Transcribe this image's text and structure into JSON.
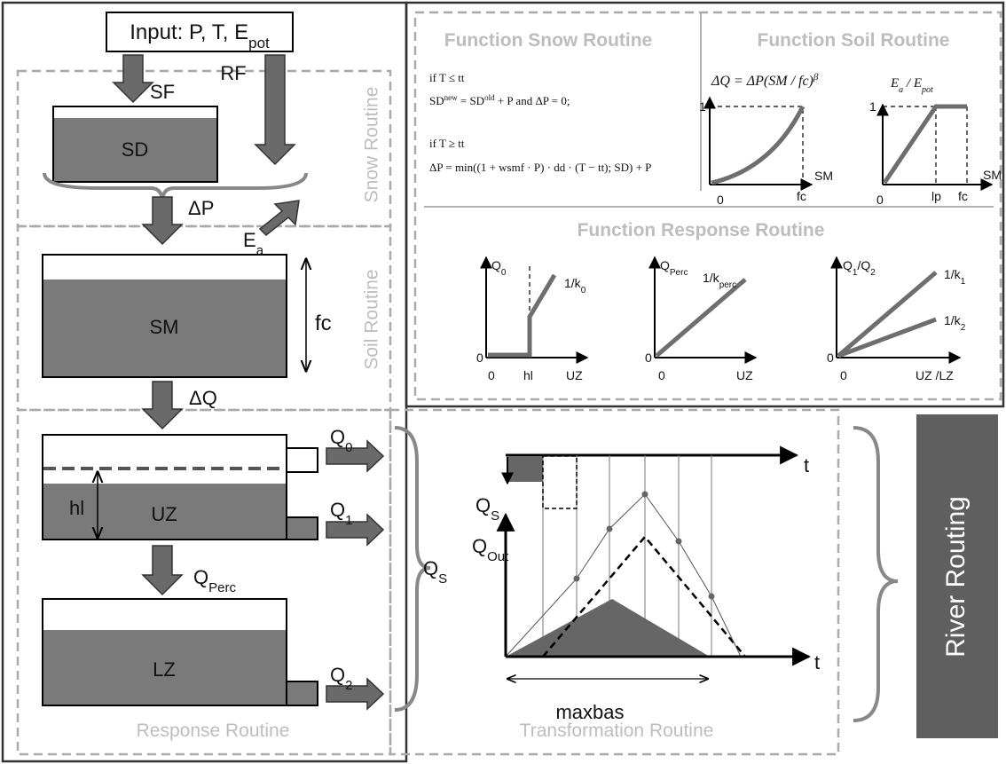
{
  "input": {
    "text": "Input: P, T, E",
    "sub": "pot"
  },
  "snow": {
    "label": "Snow Routine",
    "sf": "SF",
    "rf": "RF",
    "sd": "SD",
    "dp": "ΔP"
  },
  "soil": {
    "label": "Soil Routine",
    "ea": {
      "text": "E",
      "sub": "a"
    },
    "sm": "SM",
    "fc": "fc",
    "dq": "ΔQ"
  },
  "response": {
    "label": "Response Routine",
    "uz": "UZ",
    "hl": "hl",
    "lz": "LZ",
    "q0": {
      "text": "Q",
      "sub": "0"
    },
    "q1": {
      "text": "Q",
      "sub": "1"
    },
    "q2": {
      "text": "Q",
      "sub": "2"
    },
    "qperc": {
      "text": "Q",
      "sub": "Perc"
    },
    "qs": {
      "text": "Q",
      "sub": "S"
    }
  },
  "transformation": {
    "label": "Transformation Routine",
    "t_top": "t",
    "qs": {
      "text": "Q",
      "sub": "S"
    },
    "qout": {
      "text": "Q",
      "sub": "Out"
    },
    "t_bottom": "t",
    "maxbas": "maxbas"
  },
  "river": "River Routing",
  "functions": {
    "snow": {
      "title": "Function Snow Routine",
      "if1": "if    T ≤ tt",
      "line2": {
        "pre": "SD",
        "sup1": "new",
        "mid": " = SD",
        "sup2": "old",
        "post": " + P    and    ΔP = 0;"
      },
      "if2": "if    T ≥ tt",
      "line4": "ΔP = min((1 + wsmf · P) · dd · (T − tt); SD) + P"
    },
    "soil": {
      "title": "Function Soil Routine",
      "eq": {
        "pre": "ΔQ = ΔP(SM / fc)",
        "sup": "β"
      },
      "plot1": {
        "one": "1",
        "x": "SM",
        "zero": "0",
        "fc": "fc"
      },
      "plot2": {
        "y": {
          "e1": "E",
          "s1": "a",
          "mid": " / E",
          "s2": "pot"
        },
        "one": "1",
        "x": "SM",
        "zero": "0",
        "lp": "lp",
        "fc": "fc"
      }
    },
    "response": {
      "title": "Function Response Routine",
      "plot1": {
        "y": {
          "text": "Q",
          "sub": "0"
        },
        "k": {
          "text": "1/k",
          "sub": "0"
        },
        "y0": "0",
        "x0": "0",
        "hl": "hl",
        "x": "UZ"
      },
      "plot2": {
        "y": {
          "text": "Q",
          "sub": "Perc"
        },
        "k": {
          "text": "1/k",
          "sub": "perc"
        },
        "y0": "0",
        "x0": "0",
        "x": "UZ"
      },
      "plot3": {
        "y": {
          "a": "Q",
          "s1": "1",
          "mid": "/Q",
          "s2": "2"
        },
        "k1": {
          "text": "1/k",
          "sub": "1"
        },
        "k2": {
          "text": "1/k",
          "sub": "2"
        },
        "y0": "0",
        "x0": "0",
        "x": "UZ /LZ"
      }
    }
  }
}
